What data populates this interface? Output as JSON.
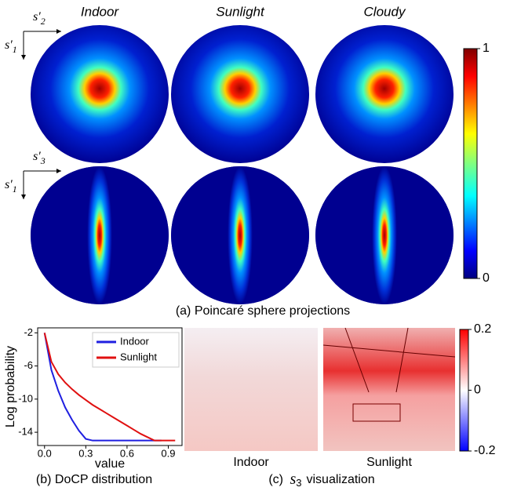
{
  "panel_a": {
    "columns": [
      "Indoor",
      "Sunlight",
      "Cloudy"
    ],
    "row_axes": [
      {
        "horizontal": {
          "base": "s′",
          "sub": "2"
        },
        "vertical": {
          "base": "s′",
          "sub": "1"
        }
      },
      {
        "horizontal": {
          "base": "s′",
          "sub": "3"
        },
        "vertical": {
          "base": "s′",
          "sub": "1"
        }
      }
    ],
    "colorbar": {
      "ylim": [
        0,
        1
      ],
      "yticks": [
        0,
        1
      ]
    },
    "caption": "(a) Poincaré sphere projections"
  },
  "chart_data": {
    "type": "line",
    "xlabel": "value",
    "ylabel": "Log probability",
    "x": [
      0,
      0.05,
      0.1,
      0.15,
      0.2,
      0.25,
      0.3,
      0.35,
      0.4,
      0.45,
      0.5,
      0.55,
      0.6,
      0.65,
      0.7,
      0.75,
      0.8,
      0.85,
      0.9,
      0.95
    ],
    "series": [
      {
        "name": "Indoor",
        "color": "#1f1fe0",
        "values": [
          -2,
          -6.5,
          -9,
          -11,
          -12.5,
          -13.8,
          -14.8,
          -15,
          -15,
          -15,
          -15,
          -15,
          -15,
          -15,
          -15,
          -15,
          -15,
          -15,
          null,
          null
        ]
      },
      {
        "name": "Sunlight",
        "color": "#e01010",
        "values": [
          -2,
          -5.5,
          -7,
          -8,
          -8.8,
          -9.5,
          -10.1,
          -10.7,
          -11.2,
          -11.7,
          -12.2,
          -12.7,
          -13.2,
          -13.7,
          -14.2,
          -14.6,
          -15,
          -15,
          -15,
          -15
        ]
      }
    ],
    "xlim": [
      -0.05,
      1.0
    ],
    "ylim": [
      -15.6,
      -1.4
    ],
    "xticks": [
      {
        "value": 0,
        "label": "0.0"
      },
      0.3,
      0.6,
      0.9
    ],
    "yticks": [
      -2,
      -6,
      -10,
      -14
    ],
    "legend": "upper right",
    "caption": "(b) DoCP distribution"
  },
  "panel_c": {
    "labels": [
      "Indoor",
      "Sunlight"
    ],
    "colorbar": {
      "ylim": [
        -0.2,
        0.2
      ],
      "yticks": [
        0.2,
        0,
        -0.2
      ]
    },
    "caption": {
      "prefix": "(c)",
      "symbol": "s",
      "sub": "3",
      "suffix": "visualization"
    }
  }
}
